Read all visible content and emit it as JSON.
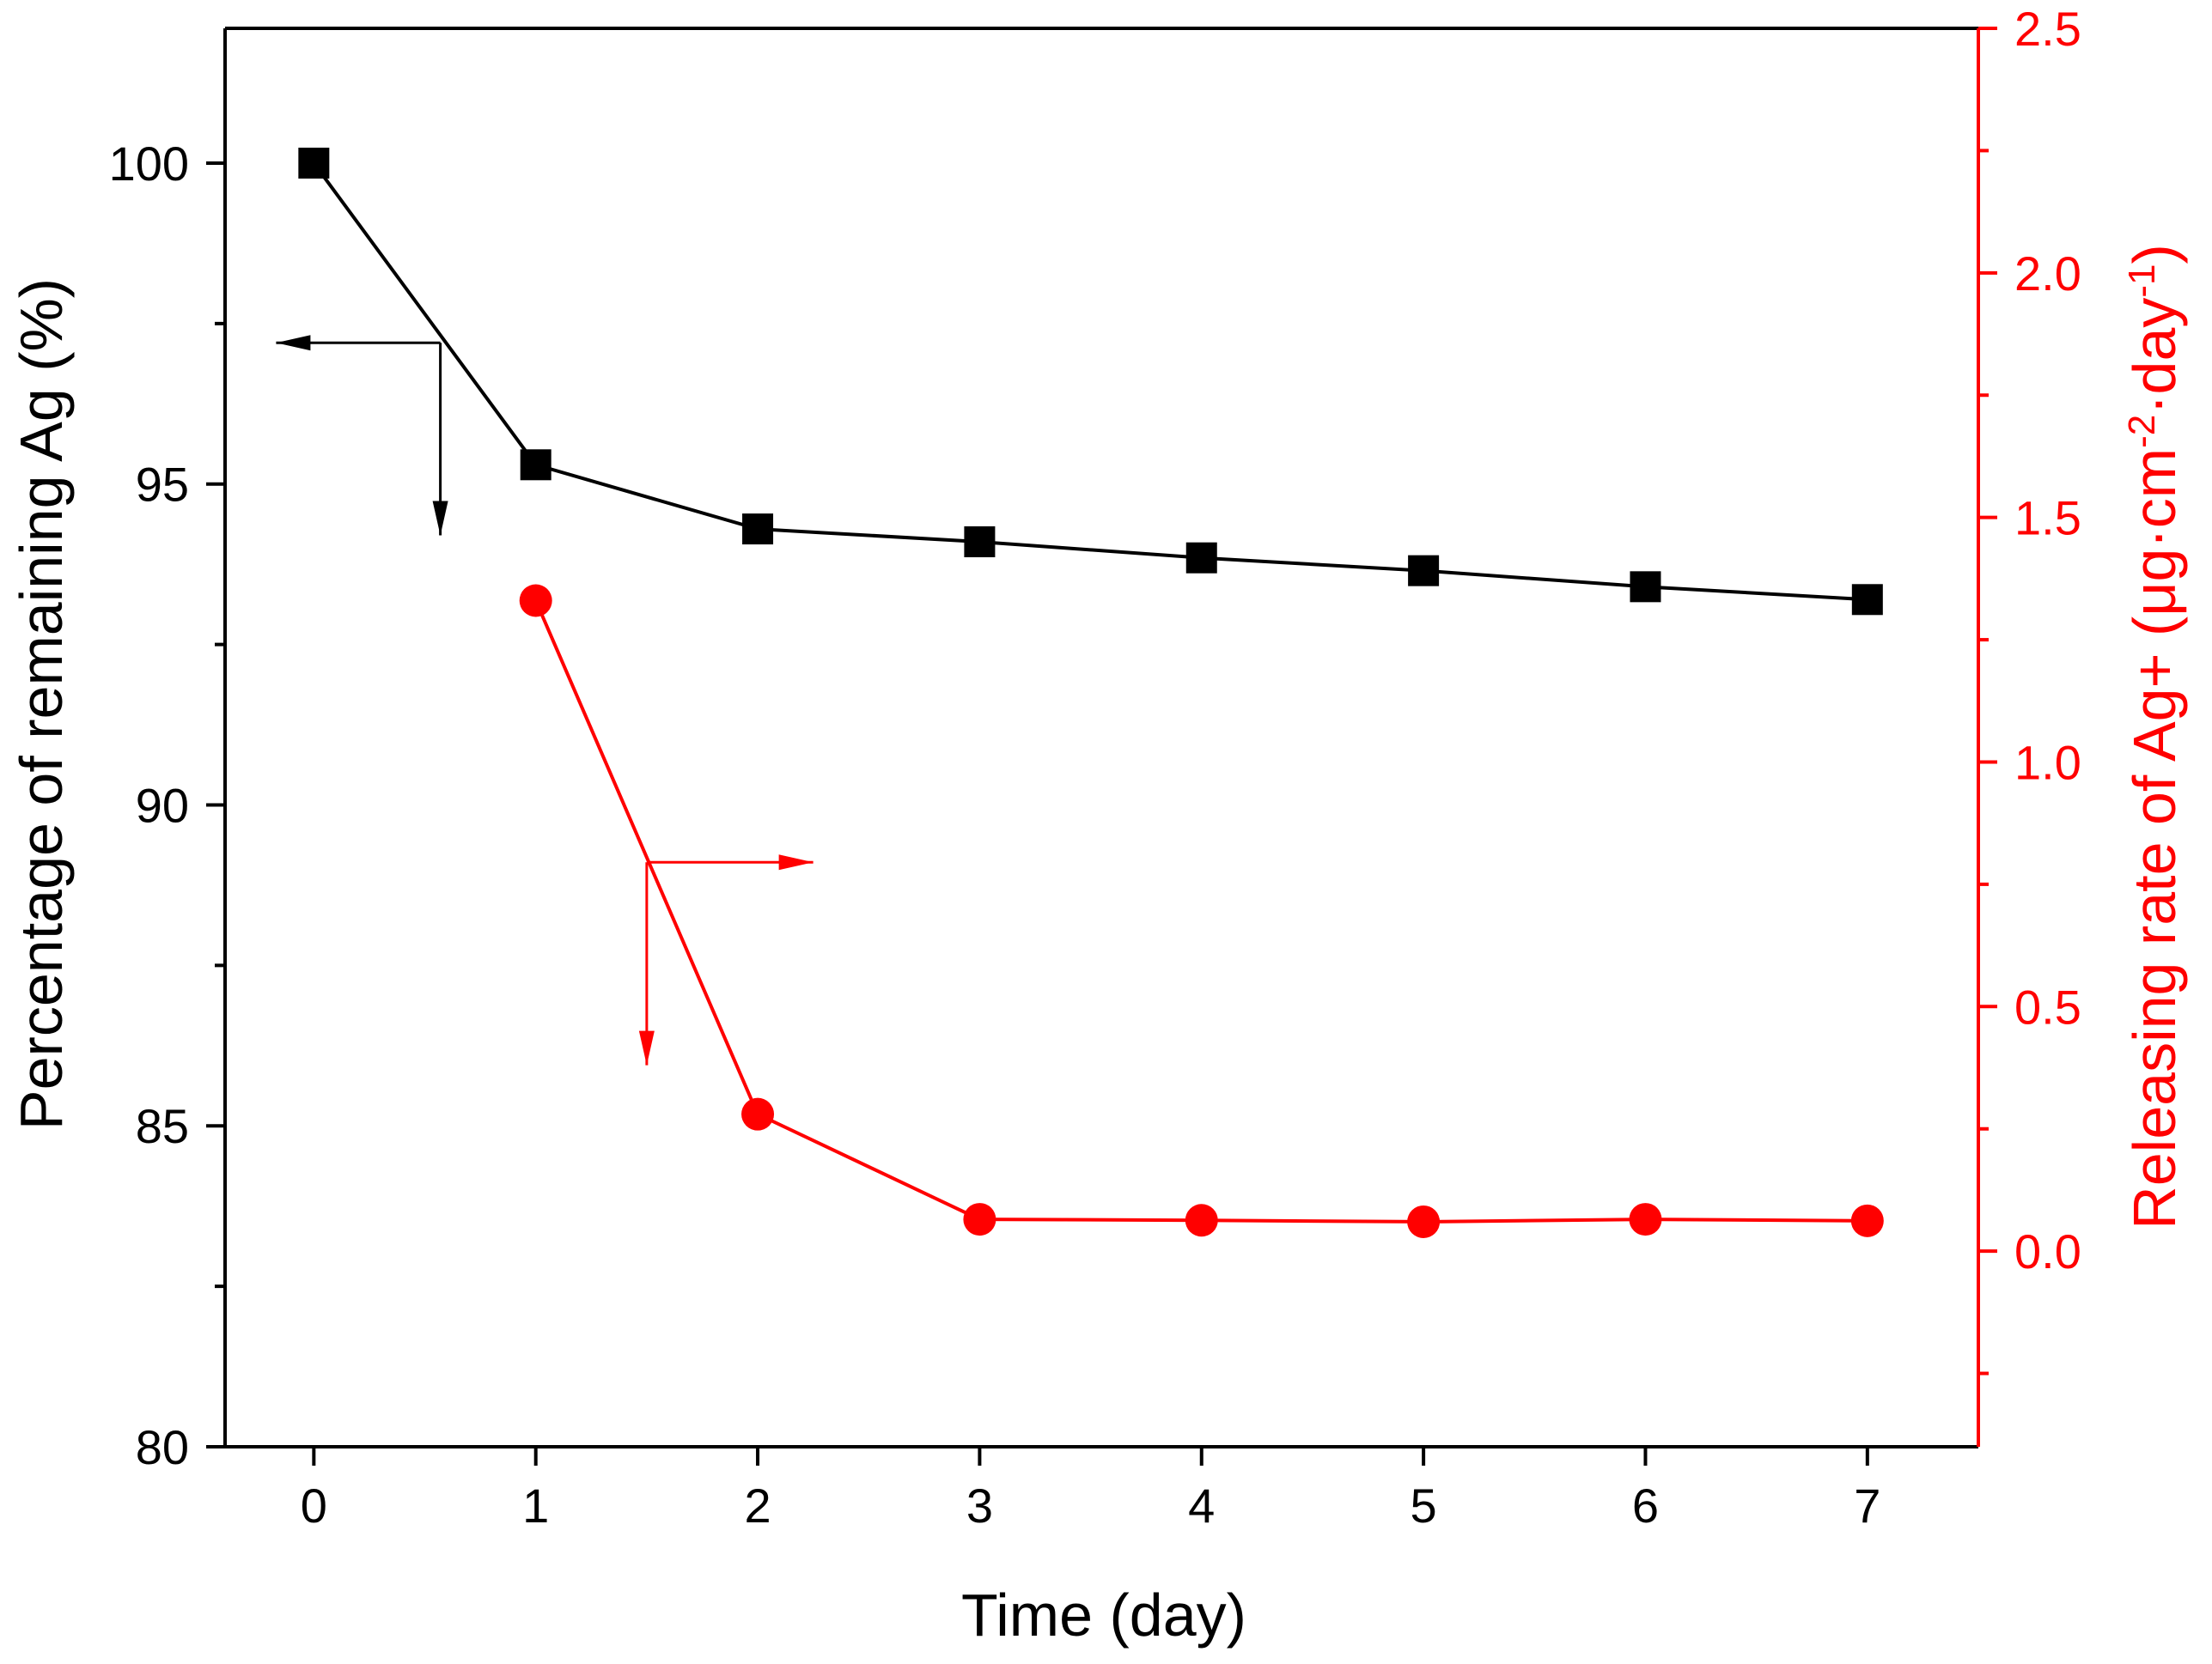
{
  "chart_data": {
    "type": "line",
    "dual_axis": true,
    "x": [
      0,
      1,
      2,
      3,
      4,
      5,
      6,
      7
    ],
    "xlabel": "Time (day)",
    "xlim": [
      -0.4,
      7.5
    ],
    "xticks": [
      "0",
      "1",
      "2",
      "3",
      "4",
      "5",
      "6",
      "7"
    ],
    "y_left": {
      "label": "Percentage of remaining Ag (%)",
      "lim": [
        80,
        102.1
      ],
      "ticks": [
        "80",
        "85",
        "90",
        "95",
        "100"
      ],
      "minor_ticks": [
        82.5,
        87.5,
        92.5,
        97.5
      ],
      "color": "#000000"
    },
    "y_right": {
      "label_main": "Releasing rate of Ag+ (μg·cm",
      "label_sup1": "-2",
      "label_mid": "·day",
      "label_sup2": "-1",
      "label_end": ")",
      "lim": [
        -0.4,
        2.5
      ],
      "ticks": [
        "0.0",
        "0.5",
        "1.0",
        "1.5",
        "2.0",
        "2.5"
      ],
      "minor_ticks": [
        -0.25,
        0.25,
        0.75,
        1.25,
        1.75,
        2.25
      ],
      "color": "#ff0000"
    },
    "series": [
      {
        "name": "Percentage of remaining Ag",
        "axis": "left",
        "marker": "square",
        "color": "#000000",
        "x": [
          0,
          1,
          2,
          3,
          4,
          5,
          6,
          7
        ],
        "values": [
          100.0,
          95.3,
          94.3,
          94.1,
          93.85,
          93.65,
          93.4,
          93.2
        ]
      },
      {
        "name": "Releasing rate of Ag+",
        "axis": "right",
        "marker": "circle",
        "color": "#ff0000",
        "x": [
          1,
          2,
          3,
          4,
          5,
          6,
          7
        ],
        "values": [
          1.33,
          0.28,
          0.065,
          0.063,
          0.06,
          0.065,
          0.062
        ]
      }
    ],
    "annotations": [
      {
        "type": "axis-pointer",
        "series": "Percentage of remaining Ag",
        "points_to": "left",
        "color": "#000000"
      },
      {
        "type": "axis-pointer",
        "series": "Releasing rate of Ag+",
        "points_to": "right",
        "color": "#ff0000"
      }
    ]
  }
}
